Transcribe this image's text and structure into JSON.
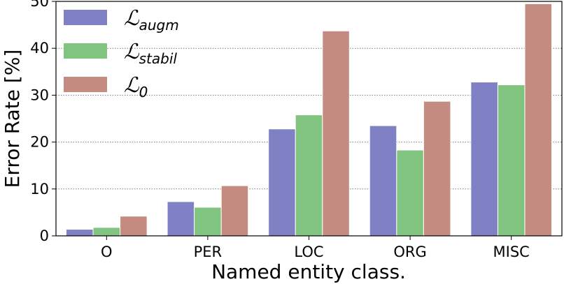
{
  "chart_data": {
    "type": "bar",
    "title": "",
    "xlabel": "Named entity class.",
    "ylabel": "Error Rate [%]",
    "ylim": [
      0,
      50
    ],
    "yticks": [
      0,
      10,
      20,
      30,
      40,
      50
    ],
    "grid": "horizontal dotted",
    "legend_position": "top-left",
    "categories": [
      "O",
      "PER",
      "LOC",
      "ORG",
      "MISC"
    ],
    "series": [
      {
        "name_script": "ℒ",
        "name_sub": "augm",
        "color": "#8080c4",
        "values": [
          1.4,
          7.3,
          22.8,
          23.5,
          32.8
        ]
      },
      {
        "name_script": "ℒ",
        "name_sub": "stabil",
        "color": "#80c480",
        "values": [
          1.8,
          6.1,
          25.8,
          18.3,
          32.2
        ]
      },
      {
        "name_script": "ℒ",
        "name_sub": "0",
        "color": "#c48c80",
        "values": [
          4.2,
          10.7,
          43.7,
          28.7,
          49.5
        ]
      }
    ]
  }
}
